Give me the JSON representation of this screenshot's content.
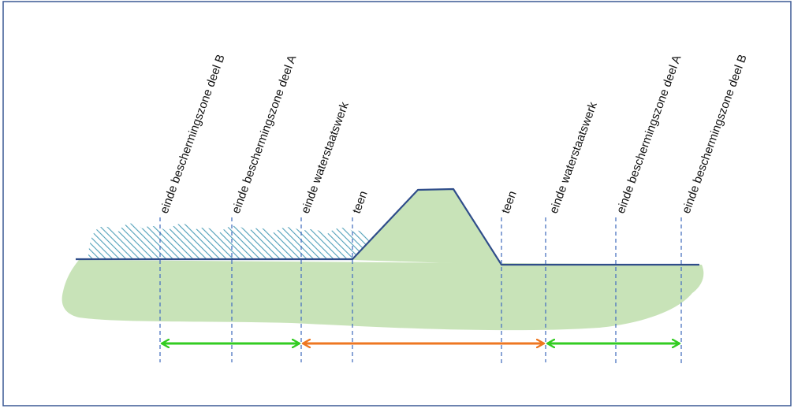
{
  "colors": {
    "border": "#3a5894",
    "ground": "#c8e3b8",
    "profile_line": "#2f4d8a",
    "water_hatch": "#4f9fb8",
    "guide_line": "#4a73c0",
    "zone_arrow": "#33cc22",
    "core_arrow": "#ee7722"
  },
  "labels": {
    "left_zone_b": "einde beschermingszone deel B",
    "left_zone_a": "einde beschermingszone deel A",
    "left_waterstaatswerk": "einde waterstaatswerk",
    "left_teen": "teen",
    "right_teen": "teen",
    "right_waterstaatswerk": "einde waterstaatswerk",
    "right_zone_a": "einde beschermingszone deel A",
    "right_zone_b": "einde beschermingszone deel B"
  },
  "icons": {
    "water": "water-hatch-icon",
    "arrows": "double-arrow-icon"
  }
}
